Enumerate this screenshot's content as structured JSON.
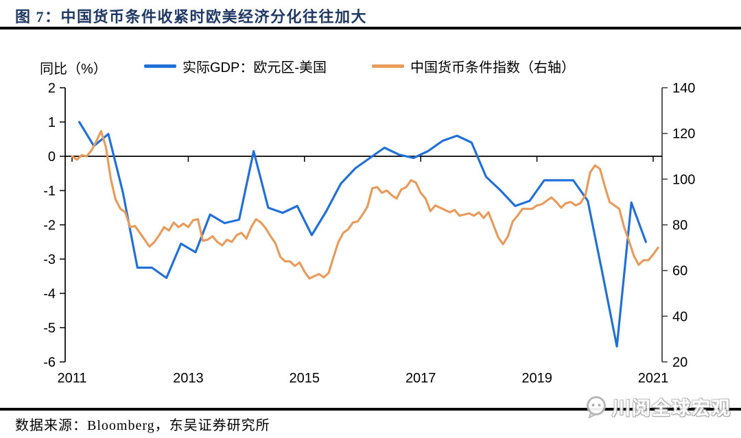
{
  "header": {
    "title": "图 7：中国货币条件收紧时欧美经济分化往往加大"
  },
  "footer": {
    "source": "数据来源：Bloomberg，东吴证券研究所",
    "watermark_text": "川阅全球宏观",
    "watermark_icon": "wechat-icon"
  },
  "colors": {
    "title": "#1F3864",
    "series1": "#2170D8",
    "series2": "#E89B5B",
    "rule": "#000000",
    "right_axis": "#3a3a3a"
  },
  "chart_data": {
    "type": "line",
    "title": "图 7：中国货币条件收紧时欧美经济分化往往加大",
    "legend_position": "top",
    "grid": false,
    "left_axis": {
      "label": "同比（%）",
      "ticks": [
        2,
        1,
        0,
        -1,
        -2,
        -3,
        -4,
        -5,
        -6
      ],
      "range": [
        -6,
        2
      ]
    },
    "right_axis": {
      "label": "右轴",
      "ticks": [
        140,
        120,
        100,
        80,
        60,
        40,
        20
      ],
      "range": [
        20,
        140
      ]
    },
    "x_axis": {
      "tick_labels": [
        "2011",
        "2013",
        "2015",
        "2017",
        "2019",
        "2021"
      ],
      "tick_years": [
        2011,
        2013,
        2015,
        2017,
        2019,
        2021
      ],
      "range": [
        2011,
        2021.25
      ]
    },
    "series": [
      {
        "name": "实际GDP：欧元区-美国",
        "axis": "left",
        "color": "#2170D8",
        "period": "quarterly",
        "start": "2011Q1",
        "values": [
          1.0,
          0.3,
          0.65,
          -1.05,
          -3.25,
          -3.25,
          -3.55,
          -2.55,
          -2.8,
          -1.7,
          -1.95,
          -1.85,
          0.15,
          -1.5,
          -1.65,
          -1.45,
          -2.3,
          -1.6,
          -0.8,
          -0.35,
          -0.05,
          0.25,
          0.05,
          -0.05,
          0.15,
          0.45,
          0.6,
          0.4,
          -0.6,
          -1.0,
          -1.45,
          -1.3,
          -0.7,
          -0.7,
          -0.7,
          -1.3,
          -3.4,
          -5.55,
          -1.35,
          -2.5
        ]
      },
      {
        "name": "中国货币条件指数（右轴）",
        "axis": "right",
        "color": "#E89B5B",
        "period": "monthly",
        "start": "2011-01",
        "values": [
          110,
          108.5,
          110.5,
          110,
          112.5,
          116.5,
          121,
          114,
          100,
          91,
          87,
          85.5,
          79,
          79.5,
          76.5,
          73.5,
          70.5,
          72.5,
          75.5,
          79,
          77.5,
          81,
          79,
          80.5,
          79,
          82,
          82.5,
          73,
          73.5,
          75,
          72.5,
          71,
          73.5,
          72.5,
          75.5,
          76.5,
          74,
          79,
          82.5,
          81,
          78.5,
          75,
          72,
          66,
          64,
          64,
          62,
          63.5,
          59.5,
          56.5,
          57.5,
          58.5,
          57,
          59,
          66,
          72.5,
          76.5,
          78,
          81,
          81.5,
          84.5,
          88,
          96,
          96.5,
          94,
          95,
          93,
          91.5,
          95.5,
          96.5,
          99.5,
          98.5,
          94,
          91.5,
          86,
          88.5,
          87.5,
          86.5,
          85.5,
          86.5,
          84,
          84.5,
          85,
          84,
          85.5,
          83,
          85.5,
          80,
          74.5,
          71.5,
          75,
          81.5,
          84,
          87,
          87,
          87,
          88.5,
          89,
          90.5,
          92,
          90,
          87.5,
          89.5,
          90,
          88.5,
          89.5,
          93,
          103,
          106,
          104.5,
          97,
          90,
          88.5,
          87,
          79,
          73,
          66.5,
          62.5,
          64.5,
          64.5,
          67,
          70
        ]
      }
    ]
  }
}
